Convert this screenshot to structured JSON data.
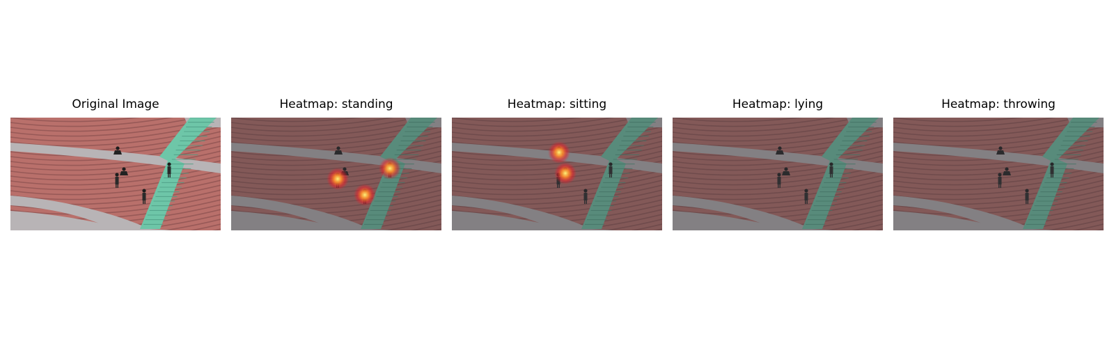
{
  "figure": {
    "panels": [
      {
        "id": "original",
        "title": "Original Image",
        "dim": 0,
        "heat_spots": []
      },
      {
        "id": "standing",
        "title": "Heatmap: standing",
        "dim": 0.42,
        "heat_spots": [
          "person-left",
          "person-right",
          "person-bottom"
        ]
      },
      {
        "id": "sitting",
        "title": "Heatmap: sitting",
        "dim": 0.42,
        "heat_spots": [
          "person-top",
          "person-middle"
        ]
      },
      {
        "id": "lying",
        "title": "Heatmap: lying",
        "dim": 0.42,
        "heat_spots": []
      },
      {
        "id": "throwing",
        "title": "Heatmap: throwing",
        "dim": 0.42,
        "heat_spots": []
      }
    ],
    "colors": {
      "bleacher": "#b9706b",
      "bleacher_shadow": "#8f5452",
      "walkway": "#b8b4b6",
      "stairs": "#6ec6a8",
      "dim_overlay": "#3a3a3e",
      "heat_core": "#fff27a",
      "heat_mid": "#ff8a2a",
      "heat_outer": "#e8202a"
    }
  }
}
